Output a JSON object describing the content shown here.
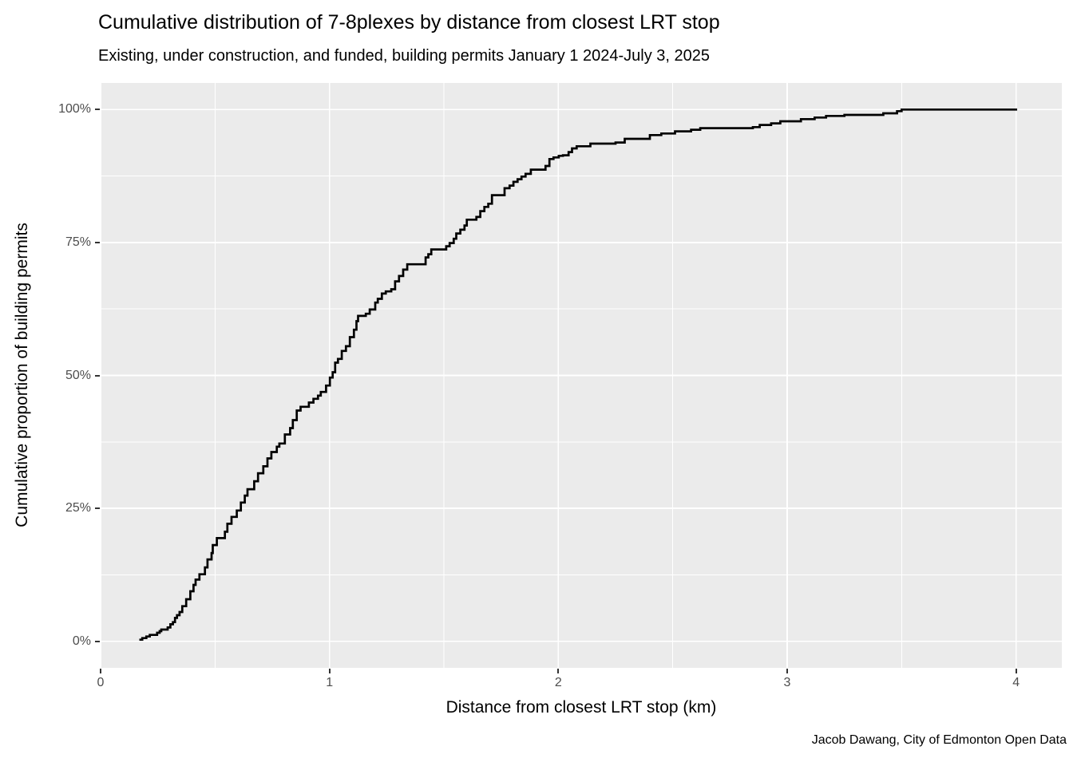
{
  "chart_data": {
    "type": "line",
    "variant": "ecdf_step",
    "title": "Cumulative distribution of 7-8plexes by distance from closest LRT stop",
    "subtitle": "Existing, under construction, and funded, building permits January 1 2024-July 3, 2025",
    "caption": "Jacob Dawang, City of Edmonton Open Data",
    "xlabel": "Distance from closest LRT stop (km)",
    "ylabel": "Cumulative proportion of building permits",
    "xlim": [
      0,
      4.2
    ],
    "ylim_pct": [
      -5,
      105
    ],
    "x_ticks": [
      {
        "value": 0,
        "label": "0"
      },
      {
        "value": 1,
        "label": "1"
      },
      {
        "value": 2,
        "label": "2"
      },
      {
        "value": 3,
        "label": "3"
      },
      {
        "value": 4,
        "label": "4"
      }
    ],
    "y_ticks": [
      {
        "value": 0,
        "label": "0%"
      },
      {
        "value": 25,
        "label": "25%"
      },
      {
        "value": 50,
        "label": "50%"
      },
      {
        "value": 75,
        "label": "75%"
      },
      {
        "value": 100,
        "label": "100%"
      }
    ],
    "x_minor_ticks": [
      0.5,
      1.5,
      2.5,
      3.5
    ],
    "y_minor_ticks": [
      12.5,
      37.5,
      62.5,
      87.5
    ],
    "grid": "major-and-minor",
    "legend_position": "none",
    "colors": {
      "panel_background": "#EBEBEB",
      "gridline": "#FFFFFF",
      "line": "#000000",
      "tick_label": "#4D4D4D",
      "tick_mark": "#333333",
      "text": "#000000"
    },
    "points_format": [
      "distance_km",
      "cumulative_percent"
    ],
    "points": [
      [
        0.174,
        0.3
      ],
      [
        0.182,
        0.6
      ],
      [
        0.2,
        0.9
      ],
      [
        0.215,
        1.2
      ],
      [
        0.247,
        1.6
      ],
      [
        0.258,
        1.9
      ],
      [
        0.265,
        2.2
      ],
      [
        0.293,
        2.6
      ],
      [
        0.305,
        3.2
      ],
      [
        0.316,
        3.6
      ],
      [
        0.325,
        4.4
      ],
      [
        0.334,
        4.9
      ],
      [
        0.345,
        5.5
      ],
      [
        0.357,
        6.6
      ],
      [
        0.374,
        7.9
      ],
      [
        0.392,
        9.4
      ],
      [
        0.406,
        10.6
      ],
      [
        0.415,
        11.6
      ],
      [
        0.432,
        12.6
      ],
      [
        0.456,
        13.9
      ],
      [
        0.467,
        15.4
      ],
      [
        0.485,
        16.6
      ],
      [
        0.49,
        18.1
      ],
      [
        0.508,
        19.4
      ],
      [
        0.543,
        20.6
      ],
      [
        0.554,
        22.1
      ],
      [
        0.572,
        23.4
      ],
      [
        0.595,
        24.6
      ],
      [
        0.613,
        26.1
      ],
      [
        0.63,
        27.4
      ],
      [
        0.642,
        28.6
      ],
      [
        0.671,
        30.1
      ],
      [
        0.688,
        31.6
      ],
      [
        0.711,
        32.9
      ],
      [
        0.729,
        34.4
      ],
      [
        0.746,
        35.6
      ],
      [
        0.77,
        36.6
      ],
      [
        0.781,
        37.2
      ],
      [
        0.805,
        38.9
      ],
      [
        0.828,
        40.1
      ],
      [
        0.84,
        41.6
      ],
      [
        0.857,
        43.4
      ],
      [
        0.874,
        44.1
      ],
      [
        0.91,
        44.9
      ],
      [
        0.93,
        45.6
      ],
      [
        0.95,
        46.2
      ],
      [
        0.962,
        46.9
      ],
      [
        0.985,
        48.1
      ],
      [
        1.002,
        49.6
      ],
      [
        1.014,
        50.6
      ],
      [
        1.025,
        52.4
      ],
      [
        1.037,
        53.1
      ],
      [
        1.054,
        54.6
      ],
      [
        1.072,
        55.5
      ],
      [
        1.089,
        57.2
      ],
      [
        1.107,
        58.6
      ],
      [
        1.118,
        60.2
      ],
      [
        1.125,
        61.2
      ],
      [
        1.159,
        61.6
      ],
      [
        1.176,
        62.4
      ],
      [
        1.2,
        63.7
      ],
      [
        1.211,
        64.4
      ],
      [
        1.229,
        65.4
      ],
      [
        1.246,
        65.8
      ],
      [
        1.27,
        66.2
      ],
      [
        1.287,
        67.7
      ],
      [
        1.304,
        68.7
      ],
      [
        1.322,
        69.9
      ],
      [
        1.34,
        70.9
      ],
      [
        1.42,
        72.2
      ],
      [
        1.432,
        72.8
      ],
      [
        1.445,
        73.7
      ],
      [
        1.51,
        74.3
      ],
      [
        1.525,
        74.9
      ],
      [
        1.543,
        75.7
      ],
      [
        1.554,
        76.7
      ],
      [
        1.572,
        77.4
      ],
      [
        1.59,
        78.2
      ],
      [
        1.6,
        79.3
      ],
      [
        1.642,
        79.8
      ],
      [
        1.659,
        80.9
      ],
      [
        1.677,
        81.7
      ],
      [
        1.694,
        82.3
      ],
      [
        1.71,
        83.9
      ],
      [
        1.765,
        85.2
      ],
      [
        1.787,
        85.7
      ],
      [
        1.804,
        86.4
      ],
      [
        1.822,
        86.9
      ],
      [
        1.839,
        87.4
      ],
      [
        1.857,
        87.9
      ],
      [
        1.88,
        88.7
      ],
      [
        1.944,
        89.4
      ],
      [
        1.961,
        90.7
      ],
      [
        1.979,
        91.0
      ],
      [
        2.002,
        91.3
      ],
      [
        2.02,
        91.4
      ],
      [
        2.045,
        92.0
      ],
      [
        2.06,
        92.7
      ],
      [
        2.08,
        93.1
      ],
      [
        2.14,
        93.6
      ],
      [
        2.25,
        93.8
      ],
      [
        2.29,
        94.5
      ],
      [
        2.4,
        95.2
      ],
      [
        2.45,
        95.5
      ],
      [
        2.51,
        95.9
      ],
      [
        2.58,
        96.2
      ],
      [
        2.62,
        96.5
      ],
      [
        2.85,
        96.7
      ],
      [
        2.88,
        97.1
      ],
      [
        2.93,
        97.4
      ],
      [
        2.97,
        97.8
      ],
      [
        3.06,
        98.2
      ],
      [
        3.12,
        98.5
      ],
      [
        3.17,
        98.8
      ],
      [
        3.25,
        99.0
      ],
      [
        3.42,
        99.3
      ],
      [
        3.48,
        99.7
      ],
      [
        3.5,
        100.0
      ],
      [
        4.0,
        100.0
      ]
    ]
  }
}
